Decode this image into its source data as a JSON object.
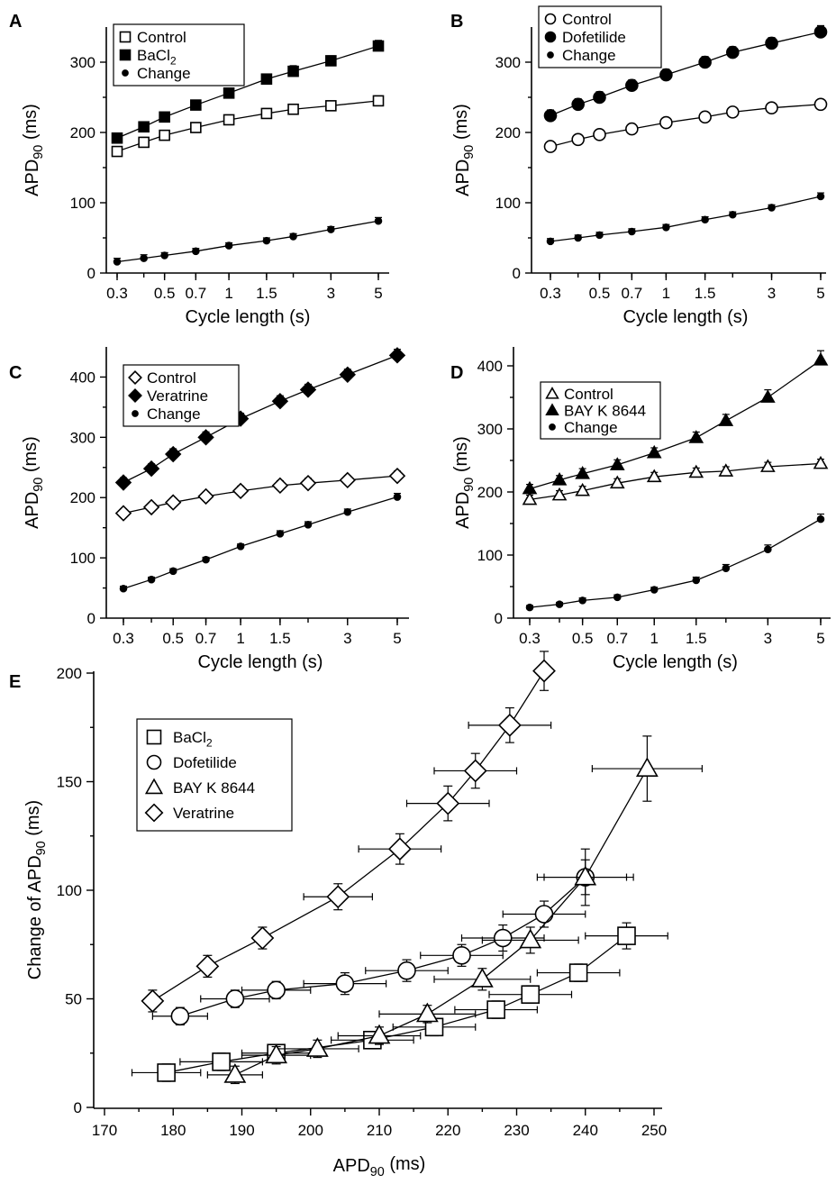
{
  "chart_data": [
    {
      "panel": "A",
      "type": "line",
      "xscale": "log",
      "xlabel": "Cycle length (s)",
      "ylabel": "APD90 (ms)",
      "ylim": [
        0,
        350
      ],
      "yticks": [
        0,
        100,
        200,
        300
      ],
      "xticks": [
        0.3,
        0.5,
        0.7,
        1,
        1.5,
        3,
        5
      ],
      "xtick_labels": [
        "0.3",
        "0.5",
        "0.7",
        "1",
        "1.5",
        "3",
        "5"
      ],
      "x": [
        0.3,
        0.4,
        0.5,
        0.7,
        1,
        1.5,
        2,
        3,
        5
      ],
      "legend_position": "top-left",
      "series": [
        {
          "name": "Control",
          "marker": "square-open",
          "values": [
            173,
            186,
            196,
            207,
            218,
            227,
            233,
            238,
            245
          ],
          "err": [
            7,
            7,
            7,
            7,
            7,
            7,
            7,
            6,
            7
          ]
        },
        {
          "name": "BaCl2",
          "marker": "square-filled",
          "values": [
            192,
            208,
            222,
            239,
            256,
            276,
            287,
            302,
            323
          ],
          "err": [
            6,
            6,
            6,
            7,
            7,
            7,
            8,
            7,
            8
          ]
        },
        {
          "name": "Change",
          "marker": "dot",
          "values": [
            16,
            21,
            25,
            31,
            39,
            46,
            52,
            62,
            74
          ],
          "err": [
            5,
            5,
            4,
            4,
            4,
            4,
            4,
            4,
            5
          ]
        }
      ]
    },
    {
      "panel": "B",
      "type": "line",
      "xscale": "log",
      "xlabel": "Cycle length (s)",
      "ylabel": "APD90 (ms)",
      "ylim": [
        0,
        350
      ],
      "yticks": [
        0,
        100,
        200,
        300
      ],
      "xticks": [
        0.3,
        0.5,
        0.7,
        1,
        1.5,
        3,
        5
      ],
      "xtick_labels": [
        "0.3",
        "0.5",
        "0.7",
        "1",
        "1.5",
        "3",
        "5"
      ],
      "x": [
        0.3,
        0.4,
        0.5,
        0.7,
        1,
        1.5,
        2,
        3,
        5
      ],
      "legend_position": "top-left",
      "series": [
        {
          "name": "Control",
          "marker": "circle-open",
          "values": [
            180,
            190,
            197,
            205,
            214,
            222,
            229,
            235,
            240
          ],
          "err": [
            7,
            7,
            7,
            7,
            7,
            7,
            7,
            6,
            7
          ]
        },
        {
          "name": "Dofetilide",
          "marker": "circle-filled",
          "values": [
            224,
            240,
            250,
            267,
            282,
            300,
            314,
            327,
            343
          ],
          "err": [
            8,
            8,
            8,
            8,
            8,
            8,
            8,
            8,
            9
          ]
        },
        {
          "name": "Change",
          "marker": "dot",
          "values": [
            45,
            50,
            54,
            59,
            65,
            76,
            83,
            93,
            109
          ],
          "err": [
            4,
            4,
            4,
            4,
            4,
            4,
            4,
            4,
            5
          ]
        }
      ]
    },
    {
      "panel": "C",
      "type": "line",
      "xscale": "log",
      "xlabel": "Cycle length (s)",
      "ylabel": "APD90 (ms)",
      "ylim": [
        0,
        450
      ],
      "yticks": [
        0,
        100,
        200,
        300,
        400
      ],
      "xticks": [
        0.3,
        0.5,
        0.7,
        1,
        1.5,
        3,
        5
      ],
      "xtick_labels": [
        "0.3",
        "0.5",
        "0.7",
        "1",
        "1.5",
        "3",
        "5"
      ],
      "x": [
        0.3,
        0.4,
        0.5,
        0.7,
        1,
        1.5,
        2,
        3,
        5
      ],
      "legend_position": "top-left",
      "series": [
        {
          "name": "Control",
          "marker": "diamond-open",
          "values": [
            174,
            184,
            192,
            202,
            211,
            220,
            224,
            229,
            236
          ],
          "err": [
            7,
            7,
            7,
            7,
            8,
            8,
            8,
            7,
            8
          ]
        },
        {
          "name": "Veratrine",
          "marker": "diamond-filled",
          "values": [
            225,
            248,
            272,
            300,
            331,
            360,
            379,
            404,
            436
          ],
          "err": [
            8,
            8,
            9,
            9,
            9,
            9,
            9,
            9,
            10
          ]
        },
        {
          "name": "Change",
          "marker": "dot",
          "values": [
            49,
            64,
            78,
            97,
            119,
            140,
            155,
            176,
            201
          ],
          "err": [
            4,
            4,
            4,
            4,
            4,
            5,
            5,
            5,
            6
          ]
        }
      ]
    },
    {
      "panel": "D",
      "type": "line",
      "xscale": "log",
      "xlabel": "Cycle length (s)",
      "ylabel": "APD90 (ms)",
      "ylim": [
        0,
        430
      ],
      "yticks": [
        0,
        100,
        200,
        300,
        400
      ],
      "xticks": [
        0.3,
        0.5,
        0.7,
        1,
        1.5,
        3,
        5
      ],
      "xtick_labels": [
        "0.3",
        "0.5",
        "0.7",
        "1",
        "1.5",
        "3",
        "5"
      ],
      "x": [
        0.3,
        0.4,
        0.5,
        0.7,
        1,
        1.5,
        2,
        3,
        5
      ],
      "legend_position": "top-left",
      "series": [
        {
          "name": "Control",
          "marker": "triangle-open",
          "values": [
            188,
            195,
            202,
            214,
            224,
            231,
            233,
            240,
            245
          ],
          "err": [
            7,
            7,
            7,
            7,
            7,
            7,
            7,
            7,
            7
          ]
        },
        {
          "name": "BAY K 8644",
          "marker": "triangle-filled",
          "values": [
            205,
            219,
            229,
            243,
            262,
            286,
            313,
            350,
            409
          ],
          "err": [
            7,
            7,
            8,
            8,
            8,
            9,
            10,
            12,
            15
          ]
        },
        {
          "name": "Change",
          "marker": "dot",
          "values": [
            17,
            22,
            28,
            33,
            45,
            60,
            79,
            109,
            157
          ],
          "err": [
            3,
            3,
            4,
            4,
            4,
            5,
            6,
            7,
            8
          ]
        }
      ]
    },
    {
      "panel": "E",
      "type": "scatter",
      "xlabel": "APD90 (ms)",
      "ylabel": "Change of APD90 (ms)",
      "xlim": [
        170,
        250
      ],
      "ylim": [
        0,
        200
      ],
      "xticks": [
        170,
        180,
        190,
        200,
        210,
        220,
        230,
        240,
        250
      ],
      "yticks": [
        0,
        50,
        100,
        150,
        200
      ],
      "legend_position": "top-left",
      "series": [
        {
          "name": "BaCl2",
          "marker": "square-open",
          "x": [
            179,
            187,
            195,
            209,
            218,
            227,
            232,
            239,
            246
          ],
          "y": [
            16,
            21,
            25,
            31,
            37,
            45,
            52,
            62,
            79
          ],
          "xerr": [
            5,
            6,
            5,
            6,
            6,
            6,
            6,
            6,
            6
          ],
          "yerr": [
            4,
            4,
            4,
            4,
            4,
            4,
            4,
            4,
            6
          ]
        },
        {
          "name": "Dofetilide",
          "marker": "circle-open",
          "x": [
            181,
            189,
            195,
            205,
            214,
            222,
            228,
            234,
            240
          ],
          "y": [
            42,
            50,
            54,
            57,
            63,
            70,
            78,
            89,
            106
          ],
          "xerr": [
            4,
            5,
            5,
            6,
            6,
            6,
            6,
            6,
            6
          ],
          "yerr": [
            4,
            4,
            4,
            5,
            5,
            5,
            6,
            6,
            13
          ]
        },
        {
          "name": "BAY K 8644",
          "marker": "triangle-open",
          "x": [
            189,
            195,
            201,
            210,
            217,
            225,
            232,
            240,
            249
          ],
          "y": [
            15,
            24,
            27,
            33,
            43,
            59,
            77,
            106,
            156
          ],
          "xerr": [
            4,
            5,
            6,
            6,
            7,
            7,
            7,
            7,
            8
          ],
          "yerr": [
            4,
            4,
            4,
            4,
            4,
            5,
            6,
            8,
            15
          ]
        },
        {
          "name": "Veratrine",
          "marker": "diamond-open",
          "x": [
            177,
            185,
            193,
            204,
            213,
            220,
            224,
            229,
            234
          ],
          "y": [
            49,
            65,
            78,
            97,
            119,
            140,
            155,
            176,
            201
          ],
          "xerr": [
            0,
            0,
            0,
            5,
            6,
            6,
            6,
            6,
            0
          ],
          "yerr": [
            5,
            5,
            5,
            6,
            7,
            8,
            8,
            8,
            9
          ]
        }
      ]
    }
  ]
}
